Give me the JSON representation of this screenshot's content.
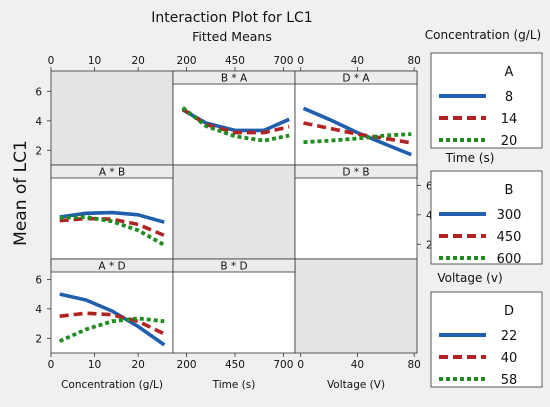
{
  "title": "Interaction Plot for LC1",
  "subtitle": "Fitted Means",
  "ylabel": "Mean of LC1",
  "colors": {
    "s1": "#1f5fae",
    "s2": "#b22222",
    "s3": "#1e8c1e"
  },
  "factors": {
    "A": {
      "name": "Concentration (g/L)",
      "ticks": [
        0,
        10,
        20
      ],
      "range": [
        0,
        28
      ]
    },
    "B": {
      "name": "Time (s)",
      "ticks": [
        200,
        450,
        700
      ],
      "range": [
        130,
        760
      ]
    },
    "D": {
      "name": "Voltage (V)",
      "ticks": [
        0,
        40,
        80
      ],
      "range": [
        -4,
        82
      ]
    }
  },
  "legends": [
    {
      "heading": "Concentration (g/L)",
      "factor": "A",
      "levels": [
        "8",
        "14",
        "20"
      ]
    },
    {
      "heading": "Time (s)",
      "factor": "B",
      "levels": [
        "300",
        "450",
        "600"
      ]
    },
    {
      "heading": "Voltage (v)",
      "factor": "D",
      "levels": [
        "22",
        "40",
        "58"
      ]
    }
  ],
  "chart_data": [
    {
      "type": "line",
      "title": "B * A",
      "xfactor": "B",
      "legend": "A",
      "ylim": [
        1,
        6.5
      ],
      "series": [
        {
          "name": "8",
          "x": [
            180,
            300,
            450,
            600,
            730
          ],
          "y": [
            4.75,
            3.85,
            3.35,
            3.35,
            4.1
          ]
        },
        {
          "name": "14",
          "x": [
            180,
            300,
            450,
            600,
            730
          ],
          "y": [
            4.8,
            3.75,
            3.2,
            3.2,
            3.6
          ]
        },
        {
          "name": "20",
          "x": [
            180,
            300,
            450,
            600,
            730
          ],
          "y": [
            4.9,
            3.65,
            2.95,
            2.65,
            3.0
          ]
        }
      ]
    },
    {
      "type": "line",
      "title": "D * A",
      "xfactor": "D",
      "legend": "A",
      "ylim": [
        1,
        6.5
      ],
      "series": [
        {
          "name": "8",
          "x": [
            2,
            20,
            40,
            60,
            78
          ],
          "y": [
            4.85,
            4.1,
            3.2,
            2.4,
            1.7
          ]
        },
        {
          "name": "14",
          "x": [
            2,
            20,
            40,
            60,
            78
          ],
          "y": [
            3.85,
            3.5,
            3.1,
            2.8,
            2.5
          ]
        },
        {
          "name": "20",
          "x": [
            2,
            20,
            40,
            60,
            78
          ],
          "y": [
            2.55,
            2.65,
            2.8,
            3.0,
            3.1
          ]
        }
      ]
    },
    {
      "type": "line",
      "title": "A * B",
      "xfactor": "A",
      "legend": "B",
      "ylim": [
        1,
        6.5
      ],
      "series": [
        {
          "name": "300",
          "x": [
            2,
            8,
            14,
            20,
            26
          ],
          "y": [
            3.85,
            4.1,
            4.15,
            4.0,
            3.5
          ]
        },
        {
          "name": "450",
          "x": [
            2,
            8,
            14,
            20,
            26
          ],
          "y": [
            3.6,
            3.75,
            3.7,
            3.35,
            2.6
          ]
        },
        {
          "name": "600",
          "x": [
            2,
            8,
            14,
            20,
            26
          ],
          "y": [
            3.8,
            3.85,
            3.55,
            2.95,
            1.95
          ]
        }
      ]
    },
    {
      "type": "line",
      "title": "D * B",
      "xfactor": "D",
      "legend": "B",
      "ylim": [
        1,
        6.5
      ],
      "series": []
    },
    {
      "type": "line",
      "title": "A * D",
      "xfactor": "A",
      "legend": "D",
      "ylim": [
        1,
        6.5
      ],
      "series": [
        {
          "name": "22",
          "x": [
            2,
            8,
            14,
            20,
            26
          ],
          "y": [
            5.0,
            4.6,
            3.85,
            2.8,
            1.55
          ]
        },
        {
          "name": "40",
          "x": [
            2,
            8,
            14,
            20,
            26
          ],
          "y": [
            3.5,
            3.7,
            3.6,
            3.15,
            2.3
          ]
        },
        {
          "name": "58",
          "x": [
            2,
            8,
            14,
            20,
            26
          ],
          "y": [
            1.8,
            2.6,
            3.15,
            3.35,
            3.15
          ]
        }
      ]
    },
    {
      "type": "line",
      "title": "B * D",
      "xfactor": "B",
      "legend": "D",
      "ylim": [
        1,
        6.5
      ],
      "series": []
    }
  ],
  "ticks": {
    "y": [
      "2",
      "4",
      "6"
    ],
    "top_axis": [
      {
        "factor": "A",
        "labels": [
          "0",
          "10",
          "20"
        ]
      },
      {
        "factor": "B",
        "labels": [
          "200",
          "450",
          "700"
        ]
      },
      {
        "factor": "D",
        "labels": [
          "0",
          "40",
          "80"
        ]
      }
    ],
    "bottom_axis": [
      {
        "factor": "A",
        "labels": [
          "0",
          "10",
          "20"
        ],
        "label": "Concentration (g/L)"
      },
      {
        "factor": "B",
        "labels": [
          "200",
          "450",
          "700"
        ],
        "label": "Time (s)"
      },
      {
        "factor": "D",
        "labels": [
          "0",
          "40",
          "80"
        ],
        "label": "Voltage (V)"
      }
    ]
  }
}
